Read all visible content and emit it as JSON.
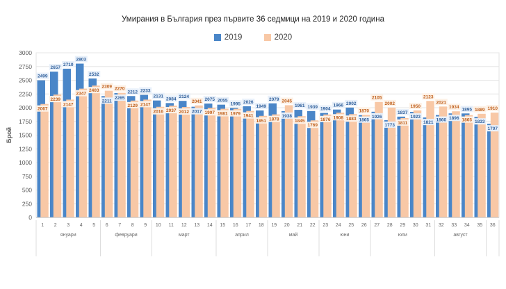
{
  "chart_data": {
    "type": "bar",
    "title": "Умирания в България през първите 36 седмици на 2019 и 2020 година",
    "ylabel": "Брой",
    "xlabel": "",
    "ylim": [
      0,
      3000
    ],
    "yticks": [
      0,
      250,
      500,
      750,
      1000,
      1250,
      1500,
      1750,
      2000,
      2250,
      2500,
      2750,
      3000
    ],
    "grid": true,
    "legend": "top",
    "categories": [
      "1",
      "2",
      "3",
      "4",
      "5",
      "6",
      "7",
      "8",
      "9",
      "10",
      "11",
      "12",
      "13",
      "14",
      "15",
      "16",
      "17",
      "18",
      "19",
      "20",
      "21",
      "22",
      "23",
      "24",
      "25",
      "26",
      "27",
      "28",
      "29",
      "30",
      "31",
      "32",
      "33",
      "34",
      "35",
      "36"
    ],
    "months": [
      {
        "label": "януари",
        "weeks": [
          1,
          5
        ]
      },
      {
        "label": "февруари",
        "weeks": [
          6,
          9
        ]
      },
      {
        "label": "март",
        "weeks": [
          10,
          14
        ]
      },
      {
        "label": "април",
        "weeks": [
          15,
          18
        ]
      },
      {
        "label": "май",
        "weeks": [
          19,
          22
        ]
      },
      {
        "label": "юни",
        "weeks": [
          23,
          26
        ]
      },
      {
        "label": "юли",
        "weeks": [
          27,
          31
        ]
      },
      {
        "label": "август",
        "weeks": [
          32,
          35
        ]
      }
    ],
    "series": [
      {
        "name": "2019",
        "color": "#4a86c8",
        "label_color": "#2e5e9a",
        "values": [
          2499,
          2657,
          2710,
          2803,
          2532,
          2211,
          2265,
          2212,
          2233,
          2131,
          2084,
          2124,
          2017,
          2075,
          2055,
          1995,
          2026,
          1949,
          2079,
          1938,
          1961,
          1939,
          1904,
          1966,
          2002,
          1865,
          1926,
          1773,
          1837,
          1923,
          1821,
          1866,
          1896,
          1895,
          1833,
          1707
        ]
      },
      {
        "name": "2020",
        "color": "#f8c8a6",
        "label_color": "#c0601c",
        "values": [
          2067,
          2239,
          2147,
          2347,
          2403,
          2309,
          2270,
          2129,
          2147,
          2016,
          2037,
          2012,
          2041,
          1997,
          1981,
          1979,
          1941,
          1851,
          1878,
          2045,
          1845,
          1769,
          1876,
          1908,
          1883,
          1870,
          2105,
          2002,
          1811,
          1950,
          2123,
          2021,
          1934,
          1865,
          1889,
          1910
        ]
      }
    ]
  }
}
